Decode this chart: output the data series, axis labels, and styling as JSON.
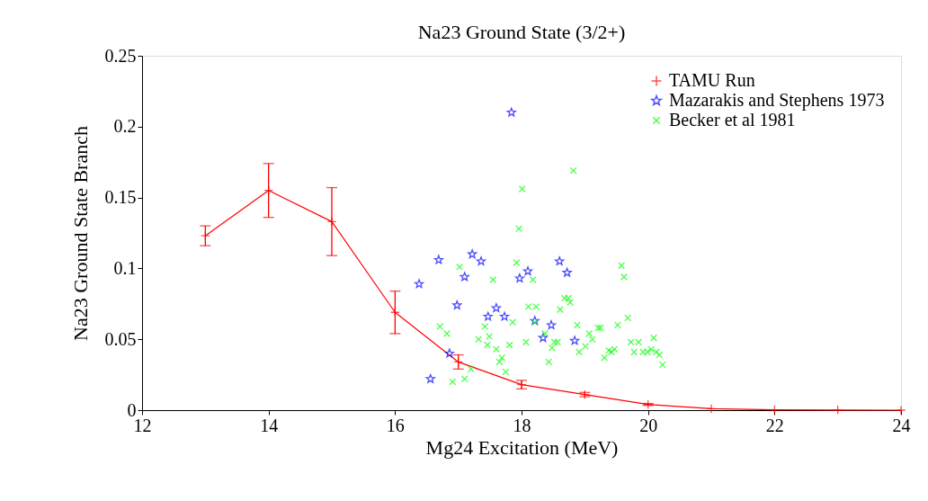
{
  "chart_data": {
    "type": "scatter",
    "title": "Na23 Ground State (3/2+)",
    "xlabel": "Mg24 Excitation (MeV)",
    "ylabel": "Na23 Ground State Branch",
    "xlim": [
      12,
      24
    ],
    "xticks": [
      12,
      14,
      16,
      18,
      20,
      22,
      24
    ],
    "ylim": [
      0,
      0.25
    ],
    "yticks": [
      0,
      0.05,
      0.1,
      0.15,
      0.2,
      0.25
    ],
    "grid": false,
    "legend": "top right",
    "series": [
      {
        "name": "TAMU Run",
        "type": "line",
        "color": "#ff0000",
        "marker": "cross",
        "x": [
          13,
          14,
          15,
          16,
          17,
          18,
          19,
          20,
          21,
          22,
          23,
          24
        ],
        "values": [
          0.123,
          0.155,
          0.133,
          0.069,
          0.034,
          0.018,
          0.011,
          0.004,
          0.001,
          0.0003,
          0.0001,
          0
        ],
        "errors": [
          0.007,
          0.019,
          0.024,
          0.015,
          0.005,
          0.003,
          0.0015,
          0.0007,
          null,
          null,
          null,
          null
        ]
      },
      {
        "name": "Mazarakis and Stephens 1973",
        "color": "#0000ff",
        "marker": "star",
        "x": [
          17.84,
          16.38,
          16.69,
          17.22,
          17.36,
          17.1,
          16.98,
          17.6,
          17.47,
          17.73,
          18.1,
          17.97,
          18.6,
          18.72,
          18.21,
          18.47,
          18.34,
          18.84,
          16.86,
          16.56
        ],
        "values": [
          0.21,
          0.089,
          0.106,
          0.11,
          0.105,
          0.094,
          0.074,
          0.072,
          0.066,
          0.066,
          0.098,
          0.093,
          0.105,
          0.097,
          0.063,
          0.06,
          0.051,
          0.049,
          0.04,
          0.022
        ]
      },
      {
        "name": "Becker et al 1981",
        "color": "#00ff00",
        "marker": "cross",
        "x": [
          18.82,
          18.01,
          17.96,
          17.02,
          17.92,
          17.55,
          18.18,
          19.58,
          19.62,
          18.68,
          18.74,
          18.77,
          18.61,
          18.11,
          18.23,
          17.86,
          17.42,
          18.21,
          16.71,
          16.82,
          17.32,
          17.49,
          17.46,
          17.6,
          17.81,
          18.07,
          18.37,
          18.52,
          18.57,
          18.48,
          18.88,
          19.07,
          19.12,
          19.21,
          19.25,
          19.01,
          18.91,
          19.52,
          19.68,
          19.38,
          19.42,
          19.47,
          19.31,
          19.73,
          19.85,
          19.78,
          19.92,
          19.99,
          20.09,
          20.05,
          20.13,
          20.18,
          20.23,
          17.69,
          17.65,
          17.75,
          17.2,
          17.1,
          16.91,
          18.43
        ],
        "values": [
          0.169,
          0.156,
          0.128,
          0.101,
          0.104,
          0.092,
          0.092,
          0.102,
          0.094,
          0.079,
          0.079,
          0.076,
          0.071,
          0.073,
          0.073,
          0.062,
          0.059,
          0.062,
          0.059,
          0.054,
          0.05,
          0.052,
          0.046,
          0.043,
          0.046,
          0.048,
          0.054,
          0.048,
          0.048,
          0.044,
          0.06,
          0.054,
          0.05,
          0.058,
          0.058,
          0.045,
          0.041,
          0.06,
          0.065,
          0.042,
          0.041,
          0.043,
          0.037,
          0.048,
          0.048,
          0.041,
          0.041,
          0.041,
          0.051,
          0.043,
          0.041,
          0.039,
          0.032,
          0.037,
          0.034,
          0.027,
          0.029,
          0.022,
          0.02,
          0.034
        ]
      }
    ]
  }
}
